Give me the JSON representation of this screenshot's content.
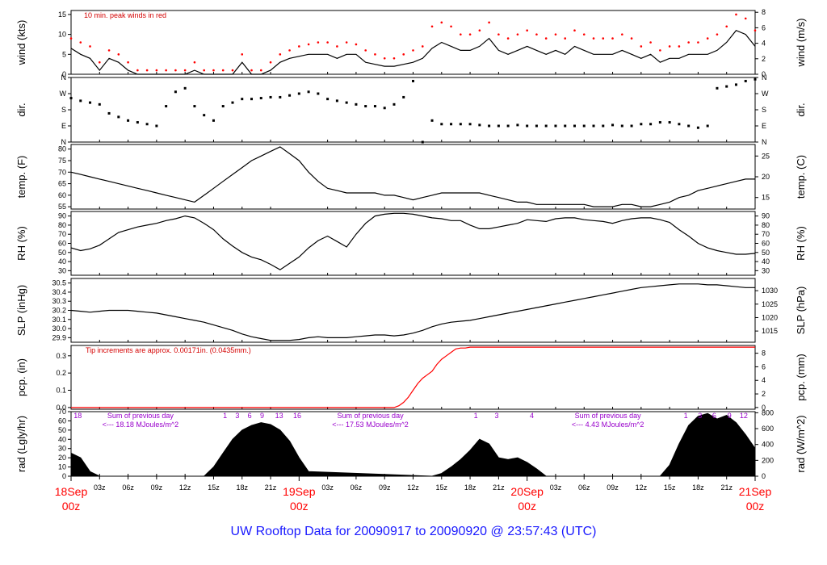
{
  "colors": {
    "axis": "#000000",
    "data": "#000000",
    "peak": "#ff0000",
    "precip": "#ff0000",
    "annot_red": "#d40000",
    "annot_purple": "#9900cc",
    "date_label": "#ff0000",
    "footer": "#1a1aff"
  },
  "footer": {
    "title": "UW Rooftop Data for 20090917  to  20090920 @ 23:57:43  (UTC)"
  },
  "chart_data": [
    {
      "type": "line",
      "panel": "wind",
      "ylabel_left": "wind (kts)",
      "ylabel_right": "wind (m/s)",
      "ylim": [
        0,
        16
      ],
      "yticks_left": [
        "0",
        "5",
        "10",
        "15"
      ],
      "yticks_right": [
        "0",
        "2",
        "4",
        "6",
        "8"
      ],
      "right_conv": 0.5144,
      "annotation": "10 min. peak winds in red",
      "x": [
        0,
        1,
        2,
        3,
        4,
        5,
        6,
        7,
        8,
        9,
        10,
        11,
        12,
        13,
        14,
        15,
        16,
        17,
        18,
        19,
        20,
        21,
        22,
        23,
        24,
        25,
        26,
        27,
        28,
        29,
        30,
        31,
        32,
        33,
        34,
        35,
        36,
        37,
        38,
        39,
        40,
        41,
        42,
        43,
        44,
        45,
        46,
        47,
        48,
        49,
        50,
        51,
        52,
        53,
        54,
        55,
        56,
        57,
        58,
        59,
        60,
        61,
        62,
        63,
        64,
        65,
        66,
        67,
        68,
        69,
        70,
        71,
        72
      ],
      "series": [
        {
          "values": [
            6.5,
            5,
            4,
            1,
            4,
            3,
            1,
            0,
            0,
            0,
            0,
            0,
            0,
            1,
            0,
            0,
            0,
            0,
            3,
            0,
            0,
            1,
            3,
            4,
            4.5,
            5,
            5,
            5,
            4,
            5,
            5,
            3,
            2.5,
            2,
            2,
            2.5,
            3,
            4,
            6.5,
            8,
            7,
            6,
            6,
            7,
            9,
            6,
            5,
            6,
            7,
            6,
            5,
            6,
            5,
            7,
            6,
            5,
            5,
            5,
            6,
            5,
            4,
            5,
            3,
            4,
            4,
            5,
            5,
            5,
            6,
            8,
            11,
            10,
            7
          ]
        },
        {
          "values": [
            9,
            8,
            7,
            3,
            6,
            5,
            3,
            1,
            1,
            1,
            1,
            1,
            1,
            3,
            1,
            1,
            1,
            1,
            5,
            1,
            1,
            3,
            5,
            6,
            7,
            7.5,
            8,
            8,
            7,
            8,
            7.5,
            6,
            5,
            4,
            4,
            5,
            6,
            7,
            12,
            13,
            12,
            10,
            10,
            11,
            13,
            10,
            9,
            10,
            11,
            10,
            9,
            10,
            9,
            11,
            10,
            9,
            9,
            9,
            10,
            9,
            7,
            8,
            6,
            7,
            7,
            8,
            8,
            9,
            10,
            12,
            15,
            14,
            11
          ]
        }
      ]
    },
    {
      "type": "scatter",
      "panel": "direction",
      "ylabel_left": "dir.",
      "ylabel_right": "dir.",
      "ylim": [
        0,
        360
      ],
      "yticks_left": [
        "N",
        "E",
        "S",
        "W",
        "N"
      ],
      "yticks_right": [
        "N",
        "E",
        "S",
        "W",
        "N"
      ],
      "x": [
        0,
        1,
        2,
        3,
        4,
        5,
        6,
        7,
        8,
        9,
        10,
        11,
        12,
        13,
        14,
        15,
        16,
        17,
        18,
        19,
        20,
        21,
        22,
        23,
        24,
        25,
        26,
        27,
        28,
        29,
        30,
        31,
        32,
        33,
        34,
        35,
        36,
        37,
        38,
        39,
        40,
        41,
        42,
        43,
        44,
        45,
        46,
        47,
        48,
        49,
        50,
        51,
        52,
        53,
        54,
        55,
        56,
        57,
        58,
        59,
        60,
        61,
        62,
        63,
        64,
        65,
        66,
        67,
        68,
        69,
        70,
        71,
        72
      ],
      "values": [
        245,
        230,
        220,
        210,
        160,
        140,
        120,
        110,
        100,
        90,
        200,
        280,
        300,
        200,
        150,
        120,
        200,
        220,
        240,
        240,
        245,
        250,
        250,
        260,
        270,
        280,
        270,
        240,
        230,
        220,
        210,
        200,
        200,
        190,
        210,
        250,
        340,
        0,
        120,
        100,
        100,
        100,
        100,
        95,
        90,
        90,
        90,
        95,
        90,
        90,
        90,
        90,
        90,
        90,
        90,
        90,
        90,
        95,
        90,
        90,
        100,
        100,
        110,
        110,
        100,
        90,
        80,
        90,
        300,
        310,
        320,
        340,
        350
      ]
    },
    {
      "type": "line",
      "panel": "temperature",
      "ylabel_left": "temp. (F)",
      "ylabel_right": "temp. (C)",
      "ylim": [
        54,
        82
      ],
      "yticks_left": [
        "55",
        "60",
        "65",
        "70",
        "75",
        "80"
      ],
      "yticks_right": [
        "15",
        "20",
        "25"
      ],
      "x": [
        0,
        1,
        2,
        3,
        4,
        5,
        6,
        7,
        8,
        9,
        10,
        11,
        12,
        13,
        14,
        15,
        16,
        17,
        18,
        19,
        20,
        21,
        22,
        23,
        24,
        25,
        26,
        27,
        28,
        29,
        30,
        31,
        32,
        33,
        34,
        35,
        36,
        37,
        38,
        39,
        40,
        41,
        42,
        43,
        44,
        45,
        46,
        47,
        48,
        49,
        50,
        51,
        52,
        53,
        54,
        55,
        56,
        57,
        58,
        59,
        60,
        61,
        62,
        63,
        64,
        65,
        66,
        67,
        68,
        69,
        70,
        71,
        72
      ],
      "values": [
        70,
        69,
        68,
        67,
        66,
        65,
        64,
        63,
        62,
        61,
        60,
        59,
        58,
        57,
        60,
        63,
        66,
        69,
        72,
        75,
        77,
        79,
        81,
        78,
        75,
        70,
        66,
        63,
        62,
        61,
        61,
        61,
        61,
        60,
        60,
        59,
        58,
        59,
        60,
        61,
        61,
        61,
        61,
        61,
        60,
        59,
        58,
        57,
        57,
        56,
        56,
        56,
        56,
        56,
        56,
        55,
        55,
        55,
        56,
        56,
        55,
        55,
        56,
        57,
        59,
        60,
        62,
        63,
        64,
        65,
        66,
        67,
        67
      ]
    },
    {
      "type": "line",
      "panel": "rh",
      "ylabel_left": "RH (%)",
      "ylabel_right": "RH (%)",
      "ylim": [
        25,
        95
      ],
      "yticks_left": [
        "30",
        "40",
        "50",
        "60",
        "70",
        "80",
        "90"
      ],
      "yticks_right": [
        "30",
        "40",
        "50",
        "60",
        "70",
        "80",
        "90"
      ],
      "x": [
        0,
        1,
        2,
        3,
        4,
        5,
        6,
        7,
        8,
        9,
        10,
        11,
        12,
        13,
        14,
        15,
        16,
        17,
        18,
        19,
        20,
        21,
        22,
        23,
        24,
        25,
        26,
        27,
        28,
        29,
        30,
        31,
        32,
        33,
        34,
        35,
        36,
        37,
        38,
        39,
        40,
        41,
        42,
        43,
        44,
        45,
        46,
        47,
        48,
        49,
        50,
        51,
        52,
        53,
        54,
        55,
        56,
        57,
        58,
        59,
        60,
        61,
        62,
        63,
        64,
        65,
        66,
        67,
        68,
        69,
        70,
        71,
        72
      ],
      "values": [
        55,
        52,
        54,
        58,
        65,
        72,
        75,
        78,
        80,
        82,
        85,
        87,
        90,
        88,
        82,
        75,
        65,
        57,
        50,
        45,
        42,
        37,
        31,
        38,
        45,
        55,
        63,
        68,
        62,
        56,
        70,
        82,
        90,
        92,
        93,
        93,
        92,
        90,
        88,
        87,
        85,
        85,
        80,
        76,
        76,
        78,
        80,
        82,
        86,
        85,
        84,
        87,
        88,
        88,
        86,
        85,
        84,
        82,
        85,
        87,
        88,
        88,
        86,
        83,
        75,
        68,
        60,
        55,
        52,
        50,
        48,
        48,
        49
      ]
    },
    {
      "type": "line",
      "panel": "pressure",
      "ylabel_left": "SLP (inHg)",
      "ylabel_right": "SLP (hPa)",
      "ylim": [
        29.85,
        30.55
      ],
      "yticks_left": [
        "29.9",
        "30.0",
        "30.1",
        "30.2",
        "30.3",
        "30.4",
        "30.5"
      ],
      "yticks_right": [
        "1015",
        "1020",
        "1025",
        "1030"
      ],
      "x": [
        0,
        1,
        2,
        3,
        4,
        5,
        6,
        7,
        8,
        9,
        10,
        11,
        12,
        13,
        14,
        15,
        16,
        17,
        18,
        19,
        20,
        21,
        22,
        23,
        24,
        25,
        26,
        27,
        28,
        29,
        30,
        31,
        32,
        33,
        34,
        35,
        36,
        37,
        38,
        39,
        40,
        41,
        42,
        43,
        44,
        45,
        46,
        47,
        48,
        49,
        50,
        51,
        52,
        53,
        54,
        55,
        56,
        57,
        58,
        59,
        60,
        61,
        62,
        63,
        64,
        65,
        66,
        67,
        68,
        69,
        70,
        71,
        72
      ],
      "values": [
        30.2,
        30.19,
        30.18,
        30.19,
        30.2,
        30.2,
        30.2,
        30.19,
        30.18,
        30.17,
        30.15,
        30.13,
        30.11,
        30.09,
        30.07,
        30.04,
        30.01,
        29.98,
        29.94,
        29.91,
        29.89,
        29.87,
        29.87,
        29.87,
        29.88,
        29.9,
        29.91,
        29.9,
        29.9,
        29.9,
        29.91,
        29.92,
        29.93,
        29.93,
        29.92,
        29.93,
        29.95,
        29.98,
        30.02,
        30.05,
        30.07,
        30.08,
        30.09,
        30.11,
        30.13,
        30.15,
        30.17,
        30.19,
        30.21,
        30.23,
        30.25,
        30.27,
        30.29,
        30.31,
        30.33,
        30.35,
        30.37,
        30.39,
        30.41,
        30.43,
        30.45,
        30.46,
        30.47,
        30.48,
        30.49,
        30.49,
        30.49,
        30.48,
        30.48,
        30.47,
        30.46,
        30.45,
        30.45
      ]
    },
    {
      "type": "line",
      "panel": "precip",
      "ylabel_left": "pcp. (in)",
      "ylabel_right": "pcp. (mm)",
      "ylim": [
        -0.01,
        0.36
      ],
      "yticks_left": [
        "0.0",
        "0.1",
        "0.2",
        "0.3"
      ],
      "yticks_right": [
        "0",
        "2",
        "4",
        "6",
        "8"
      ],
      "annotation": "Tip increments are approx. 0.00171in. (0.0435mm.)",
      "x": [
        0,
        10,
        20,
        30,
        34,
        34.5,
        35,
        35.5,
        36,
        36.5,
        37,
        37.5,
        38,
        38.5,
        39,
        39.5,
        40,
        40.5,
        41,
        41.5,
        42,
        44,
        50,
        60,
        72
      ],
      "values": [
        0,
        0,
        0,
        0,
        0,
        0.01,
        0.03,
        0.06,
        0.1,
        0.14,
        0.17,
        0.19,
        0.21,
        0.25,
        0.28,
        0.3,
        0.32,
        0.34,
        0.345,
        0.345,
        0.35,
        0.35,
        0.35,
        0.35,
        0.35
      ]
    },
    {
      "type": "area",
      "panel": "radiation",
      "ylabel_left": "rad (Lgly/hr)",
      "ylabel_right": "rad (W/m^2)",
      "ylim": [
        0,
        70
      ],
      "yticks_left": [
        "0",
        "10",
        "20",
        "30",
        "40",
        "50",
        "60",
        "70"
      ],
      "yticks_right": [
        "0",
        "200",
        "400",
        "600",
        "800"
      ],
      "x": [
        0,
        1,
        2,
        3,
        14,
        15,
        16,
        17,
        18,
        19,
        20,
        21,
        22,
        23,
        24,
        25,
        38,
        39,
        40,
        41,
        42,
        43,
        44,
        45,
        46,
        47,
        48,
        49,
        50,
        62,
        63,
        64,
        65,
        66,
        67,
        68,
        69,
        70,
        71,
        72
      ],
      "values": [
        25,
        20,
        5,
        0,
        0,
        10,
        25,
        40,
        50,
        55,
        58,
        56,
        50,
        38,
        20,
        5,
        0,
        3,
        10,
        18,
        28,
        40,
        35,
        20,
        18,
        20,
        15,
        8,
        0,
        0,
        12,
        35,
        55,
        65,
        68,
        62,
        66,
        58,
        45,
        30
      ],
      "day_markers": [
        {
          "x": 0.7,
          "label": "18"
        },
        {
          "x": 16.2,
          "label": "1"
        },
        {
          "x": 17.5,
          "label": "3"
        },
        {
          "x": 18.8,
          "label": "6"
        },
        {
          "x": 20.1,
          "label": "9"
        },
        {
          "x": 21.9,
          "label": "13"
        },
        {
          "x": 23.8,
          "label": "16"
        },
        {
          "x": 42.6,
          "label": "1"
        },
        {
          "x": 44.8,
          "label": "3"
        },
        {
          "x": 48.5,
          "label": "4"
        },
        {
          "x": 64.7,
          "label": "1"
        },
        {
          "x": 66.2,
          "label": "3"
        },
        {
          "x": 67.7,
          "label": "6"
        },
        {
          "x": 69.3,
          "label": "9"
        },
        {
          "x": 70.8,
          "label": "12"
        }
      ],
      "daily_sums": [
        {
          "x": 7.3,
          "title": "Sum of previous day",
          "value": "<--- 18.18 MJoules/m^2"
        },
        {
          "x": 31.5,
          "title": "Sum of previous day",
          "value": "<--- 17.53 MJoules/m^2"
        },
        {
          "x": 56.5,
          "title": "Sum of previous day",
          "value": "<--- 4.43 MJoules/m^2"
        }
      ]
    }
  ],
  "time_axis": {
    "range_hours": [
      0,
      72
    ],
    "hour_ticks": [
      {
        "x": 3,
        "label": "03z"
      },
      {
        "x": 6,
        "label": "06z"
      },
      {
        "x": 9,
        "label": "09z"
      },
      {
        "x": 12,
        "label": "12z"
      },
      {
        "x": 15,
        "label": "15z"
      },
      {
        "x": 18,
        "label": "18z"
      },
      {
        "x": 21,
        "label": "21z"
      },
      {
        "x": 27,
        "label": "03z"
      },
      {
        "x": 30,
        "label": "06z"
      },
      {
        "x": 33,
        "label": "09z"
      },
      {
        "x": 36,
        "label": "12z"
      },
      {
        "x": 39,
        "label": "15z"
      },
      {
        "x": 42,
        "label": "18z"
      },
      {
        "x": 45,
        "label": "21z"
      },
      {
        "x": 51,
        "label": "03z"
      },
      {
        "x": 54,
        "label": "06z"
      },
      {
        "x": 57,
        "label": "09z"
      },
      {
        "x": 60,
        "label": "12z"
      },
      {
        "x": 63,
        "label": "15z"
      },
      {
        "x": 66,
        "label": "18z"
      },
      {
        "x": 69,
        "label": "21z"
      }
    ],
    "date_labels": [
      {
        "x": 0,
        "date": "18Sep",
        "time": "00z"
      },
      {
        "x": 24,
        "date": "19Sep",
        "time": "00z"
      },
      {
        "x": 48,
        "date": "20Sep",
        "time": "00z"
      },
      {
        "x": 72,
        "date": "21Sep",
        "time": "00z"
      }
    ]
  }
}
